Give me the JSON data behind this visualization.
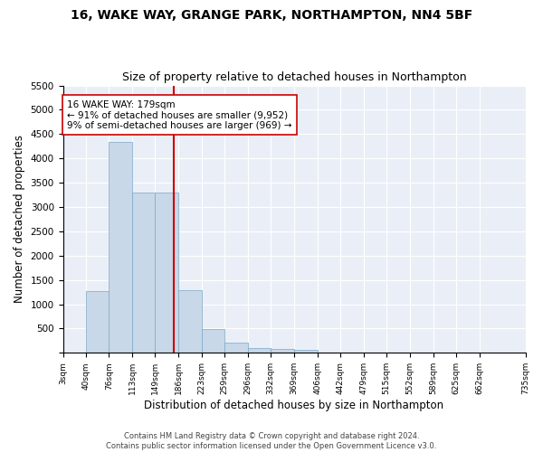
{
  "title1": "16, WAKE WAY, GRANGE PARK, NORTHAMPTON, NN4 5BF",
  "title2": "Size of property relative to detached houses in Northampton",
  "xlabel": "Distribution of detached houses by size in Northampton",
  "ylabel": "Number of detached properties",
  "bar_values": [
    0,
    1265,
    4335,
    3295,
    3295,
    1295,
    490,
    215,
    100,
    85,
    55,
    0,
    0,
    0,
    0,
    0,
    0,
    0,
    0
  ],
  "bin_edges": [
    3,
    40,
    76,
    113,
    149,
    186,
    223,
    259,
    296,
    332,
    369,
    406,
    442,
    479,
    515,
    552,
    589,
    625,
    662,
    735
  ],
  "tick_labels": [
    "3sqm",
    "40sqm",
    "76sqm",
    "113sqm",
    "149sqm",
    "186sqm",
    "223sqm",
    "259sqm",
    "296sqm",
    "332sqm",
    "369sqm",
    "406sqm",
    "442sqm",
    "479sqm",
    "515sqm",
    "552sqm",
    "589sqm",
    "625sqm",
    "662sqm",
    "735sqm"
  ],
  "bar_color": "#c8d8e8",
  "bar_edgecolor": "#7aa8c8",
  "vline_x": 179,
  "vline_color": "#cc0000",
  "annotation_text": "16 WAKE WAY: 179sqm\n← 91% of detached houses are smaller (9,952)\n9% of semi-detached houses are larger (969) →",
  "annotation_box_edgecolor": "#cc0000",
  "ylim": [
    0,
    5500
  ],
  "yticks": [
    0,
    500,
    1000,
    1500,
    2000,
    2500,
    3000,
    3500,
    4000,
    4500,
    5000,
    5500
  ],
  "bg_color": "#eaeff7",
  "title1_fontsize": 10,
  "title2_fontsize": 9,
  "xlabel_fontsize": 8.5,
  "ylabel_fontsize": 8.5,
  "footer_line1": "Contains HM Land Registry data © Crown copyright and database right 2024.",
  "footer_line2": "Contains public sector information licensed under the Open Government Licence v3.0."
}
